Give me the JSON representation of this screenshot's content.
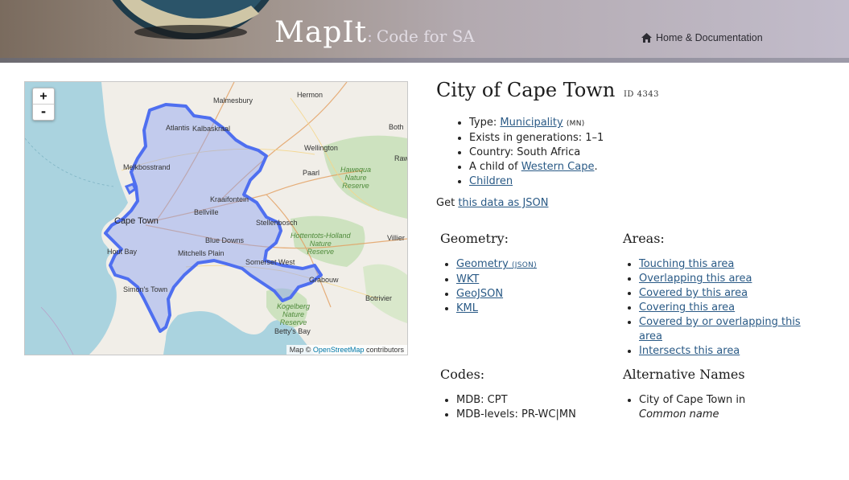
{
  "header": {
    "logo_main": "MapIt",
    "logo_sep": ":",
    "logo_sub": "Code for SA",
    "home_link": "Home & Documentation"
  },
  "map": {
    "zoom_in": "+",
    "zoom_out": "-",
    "attribution_prefix": "Map ©",
    "attribution_link": "OpenStreetMap",
    "attribution_suffix": "contributors",
    "places": {
      "hermon": "Hermon",
      "malmesbury": "Malmesbury",
      "atlantis": "Atlantis",
      "kalbaskraal": "Kalbaskraal",
      "botha": "Both",
      "wellington": "Wellington",
      "raw": "Raw",
      "melkbosstrand": "Melkbosstrand",
      "paarl": "Paarl",
      "hawequa": "Hawequa\nNature\nReserve",
      "kraaifontein": "Kraaifontein",
      "bellville": "Bellville",
      "cape_town": "Cape Town",
      "stellenbosch": "Stellenbosch",
      "hottentots": "Hottentots-Holland\nNature\nReserve",
      "villiers": "Villier",
      "blue_downs": "Blue Downs",
      "hout_bay": "Hout Bay",
      "mitchells_plain": "Mitchells Plain",
      "somerset_west": "Somerset West",
      "grabouw": "Grabouw",
      "simons_town": "Simon's Town",
      "botrivier": "Botrivier",
      "kogelberg": "Kogelberg\nNature\nReserve",
      "bettys_bay": "Betty's Bay"
    },
    "boundary_color": "#4f6ff0",
    "boundary_fill": "#8aa0f4"
  },
  "area": {
    "name": "City of Cape Town",
    "id_label": "ID 4343",
    "type_label": "Type:",
    "type_value": "Municipality",
    "type_code": "(MN)",
    "generations": "Exists in generations: 1–1",
    "country": "Country: South Africa",
    "child_prefix": "A child of",
    "parent": "Western Cape",
    "parent_suffix": ".",
    "children": "Children"
  },
  "get": {
    "prefix": "Get",
    "link": "this data as JSON"
  },
  "geometry": {
    "heading": "Geometry:",
    "items": [
      {
        "label": "Geometry",
        "suffix": "(JSON)"
      },
      {
        "label": "WKT"
      },
      {
        "label": "GeoJSON"
      },
      {
        "label": "KML"
      }
    ]
  },
  "areas": {
    "heading": "Areas:",
    "items": [
      "Touching this area",
      "Overlapping this area",
      "Covered by this area",
      "Covering this area",
      "Covered by or overlapping this area",
      "Intersects this area"
    ]
  },
  "codes": {
    "heading": "Codes:",
    "items": [
      "MDB: CPT",
      "MDB-levels: PR-WC|MN"
    ]
  },
  "alt_names": {
    "heading": "Alternative Names",
    "name": "City of Cape Town in",
    "type": "Common name"
  },
  "colors": {
    "link": "#2a5a86",
    "header_start": "#7a6b5e",
    "header_end": "#c2bccb"
  }
}
